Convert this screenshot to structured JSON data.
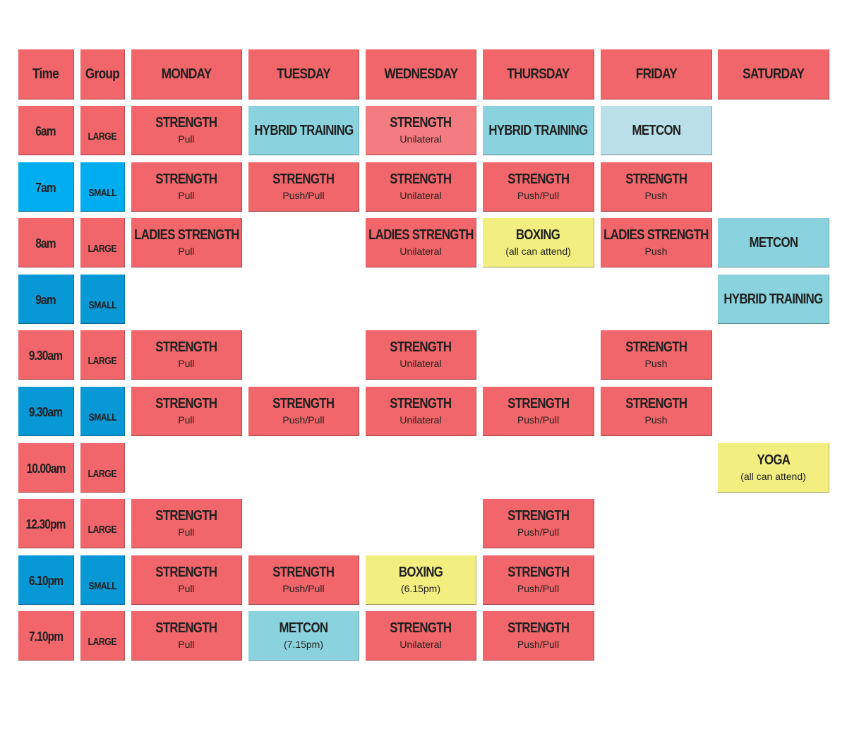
{
  "colors": {
    "red": "#f0666a",
    "red_light": "#f47c80",
    "cyan": "#8ad3de",
    "cyan_pale": "#b9dfe8",
    "blue_bright": "#00aeef",
    "blue": "#0898d6",
    "yellow": "#f2ee80"
  },
  "headers": [
    "Time",
    "Group",
    "MONDAY",
    "TUESDAY",
    "WEDNESDAY",
    "THURSDAY",
    "FRIDAY",
    "SATURDAY"
  ],
  "rows": [
    {
      "time": "6am",
      "group": "LARGE",
      "color": "red",
      "cells": [
        {
          "title": "STRENGTH",
          "sub": "Pull",
          "color": "red"
        },
        {
          "title": "HYBRID TRAINING",
          "sub": "",
          "color": "cyan"
        },
        {
          "title": "STRENGTH",
          "sub": "Unilateral",
          "color": "red_light"
        },
        {
          "title": "HYBRID TRAINING",
          "sub": "",
          "color": "cyan"
        },
        {
          "title": "METCON",
          "sub": "",
          "color": "cyan_pale"
        },
        null
      ]
    },
    {
      "time": "7am",
      "group": "SMALL",
      "color": "blue_bright",
      "cells": [
        {
          "title": "STRENGTH",
          "sub": "Pull",
          "color": "red"
        },
        {
          "title": "STRENGTH",
          "sub": "Push/Pull",
          "color": "red"
        },
        {
          "title": "STRENGTH",
          "sub": "Unilateral",
          "color": "red"
        },
        {
          "title": "STRENGTH",
          "sub": "Push/Pull",
          "color": "red"
        },
        {
          "title": "STRENGTH",
          "sub": "Push",
          "color": "red"
        },
        null
      ]
    },
    {
      "time": "8am",
      "group": "LARGE",
      "color": "red",
      "cells": [
        {
          "title": "LADIES STRENGTH",
          "sub": "Pull",
          "color": "red"
        },
        null,
        {
          "title": "LADIES STRENGTH",
          "sub": "Unilateral",
          "color": "red"
        },
        {
          "title": "BOXING",
          "sub": "(all can attend)",
          "color": "yellow"
        },
        {
          "title": "LADIES STRENGTH",
          "sub": "Push",
          "color": "red"
        },
        {
          "title": "METCON",
          "sub": "",
          "color": "cyan"
        }
      ]
    },
    {
      "time": "9am",
      "group": "SMALL",
      "color": "blue",
      "cells": [
        null,
        null,
        null,
        null,
        null,
        {
          "title": "HYBRID TRAINING",
          "sub": "",
          "color": "cyan"
        }
      ]
    },
    {
      "time": "9.30am",
      "group": "LARGE",
      "color": "red",
      "cells": [
        {
          "title": "STRENGTH",
          "sub": "Pull",
          "color": "red"
        },
        null,
        {
          "title": "STRENGTH",
          "sub": "Unilateral",
          "color": "red"
        },
        null,
        {
          "title": "STRENGTH",
          "sub": "Push",
          "color": "red"
        },
        null
      ]
    },
    {
      "time": "9.30am",
      "group": "SMALL",
      "color": "blue",
      "cells": [
        {
          "title": "STRENGTH",
          "sub": "Pull",
          "color": "red"
        },
        {
          "title": "STRENGTH",
          "sub": "Push/Pull",
          "color": "red"
        },
        {
          "title": "STRENGTH",
          "sub": "Unilateral",
          "color": "red"
        },
        {
          "title": "STRENGTH",
          "sub": "Push/Pull",
          "color": "red"
        },
        {
          "title": "STRENGTH",
          "sub": "Push",
          "color": "red"
        },
        null
      ]
    },
    {
      "time": "10.00am",
      "group": "LARGE",
      "color": "red",
      "cells": [
        null,
        null,
        null,
        null,
        null,
        {
          "title": "YOGA",
          "sub": "(all can attend)",
          "color": "yellow"
        }
      ]
    },
    {
      "time": "12.30pm",
      "group": "LARGE",
      "color": "red",
      "cells": [
        {
          "title": "STRENGTH",
          "sub": "Pull",
          "color": "red"
        },
        null,
        null,
        {
          "title": "STRENGTH",
          "sub": "Push/Pull",
          "color": "red"
        },
        null,
        null
      ]
    },
    {
      "time": "6.10pm",
      "group": "SMALL",
      "color": "blue",
      "cells": [
        {
          "title": "STRENGTH",
          "sub": "Pull",
          "color": "red"
        },
        {
          "title": "STRENGTH",
          "sub": "Push/Pull",
          "color": "red"
        },
        {
          "title": "BOXING",
          "sub": "(6.15pm)",
          "color": "yellow"
        },
        {
          "title": "STRENGTH",
          "sub": "Push/Pull",
          "color": "red"
        },
        null,
        null
      ]
    },
    {
      "time": "7.10pm",
      "group": "LARGE",
      "color": "red",
      "cells": [
        {
          "title": "STRENGTH",
          "sub": "Pull",
          "color": "red"
        },
        {
          "title": "METCON",
          "sub": "(7.15pm)",
          "color": "cyan"
        },
        {
          "title": "STRENGTH",
          "sub": "Unilateral",
          "color": "red"
        },
        {
          "title": "STRENGTH",
          "sub": "Push/Pull",
          "color": "red"
        },
        null,
        null
      ]
    }
  ]
}
